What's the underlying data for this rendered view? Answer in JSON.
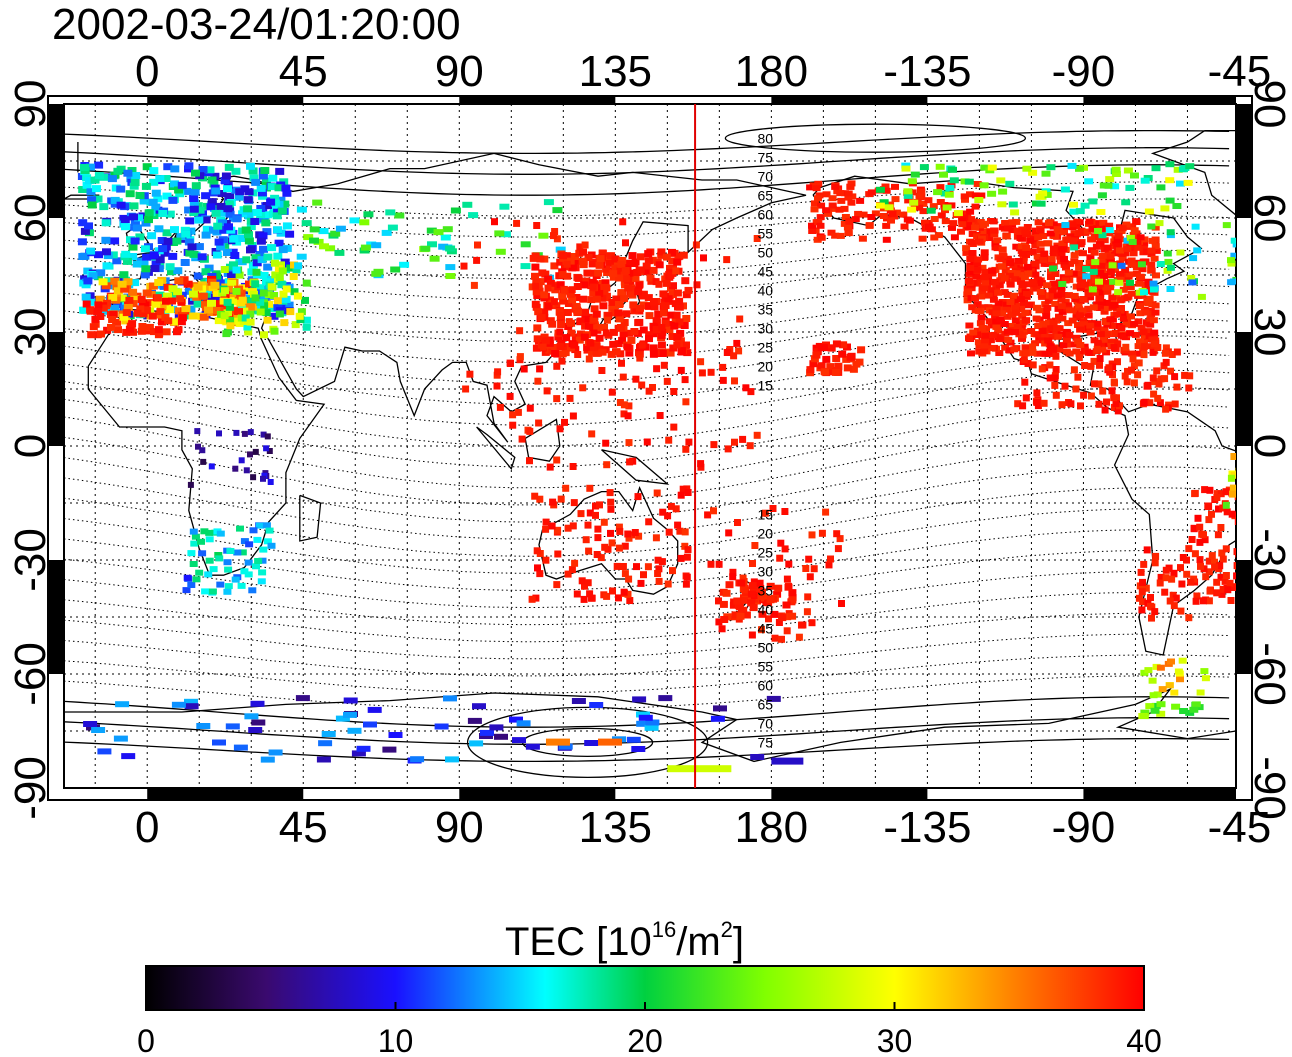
{
  "title": "2002-03-24/01:20:00",
  "map": {
    "longitude_ticks": [
      "0",
      "45",
      "90",
      "135",
      "180",
      "-135",
      "-90",
      "-45"
    ],
    "latitude_ticks": [
      "90",
      "60",
      "30",
      "0",
      "-30",
      "-60",
      "-90"
    ],
    "terminator_longitude": 158,
    "contour_labels_north": [
      "80",
      "75",
      "70",
      "65",
      "60",
      "55",
      "50",
      "45",
      "40",
      "35",
      "30",
      "25",
      "20",
      "15"
    ],
    "contour_labels_south": [
      "15",
      "20",
      "25",
      "30",
      "35",
      "40",
      "45",
      "50",
      "55",
      "60",
      "65",
      "70",
      "75"
    ]
  },
  "colorbar": {
    "label_main": "TEC  [10",
    "label_exp": "16",
    "label_unit": "/m",
    "label_unit_exp": "2",
    "label_end": "]",
    "ticks": [
      "0",
      "10",
      "20",
      "30",
      "40"
    ],
    "min": 0,
    "max": 40
  },
  "colors": {
    "high_tec": "#ff1a1a",
    "terminator": "#e00000"
  }
}
